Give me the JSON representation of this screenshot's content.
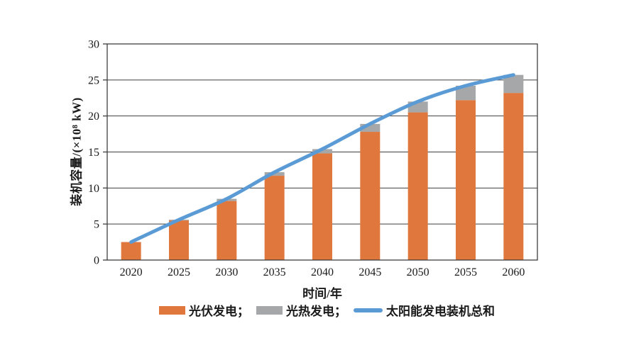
{
  "chart_data": {
    "type": "bar",
    "subtype": "stacked-bars-with-total-line",
    "title": "",
    "xlabel": "时间/年",
    "ylabel": "装机容量/(×10⁸ kW)",
    "categories": [
      "2020",
      "2025",
      "2030",
      "2035",
      "2040",
      "2045",
      "2050",
      "2055",
      "2060"
    ],
    "series": [
      {
        "name": "光伏发电",
        "type": "bar",
        "color": "#E0783E",
        "values": [
          2.5,
          5.5,
          8.2,
          11.7,
          14.8,
          17.8,
          20.5,
          22.2,
          23.2
        ]
      },
      {
        "name": "光热发电",
        "type": "bar",
        "color": "#A5A7A9",
        "values": [
          0,
          0.1,
          0.3,
          0.5,
          0.6,
          1.1,
          1.5,
          2.0,
          2.5
        ]
      },
      {
        "name": "太阳能发电装机总和",
        "type": "line",
        "color": "#5B9BD5",
        "values": [
          2.5,
          5.6,
          8.5,
          12.2,
          15.4,
          18.9,
          22.0,
          24.2,
          25.7
        ]
      }
    ],
    "legend_labels": [
      "光伏发电；",
      "光热发电；",
      "太阳能发电装机总和"
    ],
    "yticks": [
      0,
      5,
      10,
      15,
      20,
      25,
      30
    ],
    "ylim": [
      0,
      30
    ],
    "grid": "horizontal",
    "grid_color": "#3f3f3f",
    "axis_text_color": "#1a1a1a",
    "plot_border": true,
    "legend_position": "bottom",
    "background": "#ffffff"
  }
}
